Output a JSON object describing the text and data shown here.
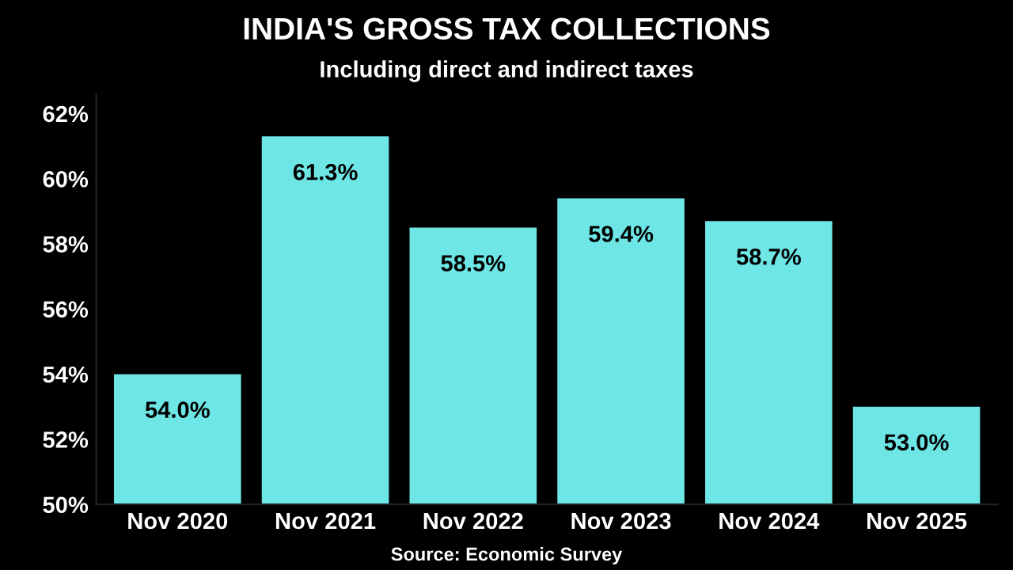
{
  "chart_data": {
    "type": "bar",
    "title": "INDIA'S GROSS TAX COLLECTIONS",
    "subtitle": "Including direct and indirect taxes",
    "categories": [
      "Nov 2020",
      "Nov 2021",
      "Nov 2022",
      "Nov 2023",
      "Nov 2024",
      "Nov 2025"
    ],
    "values": [
      54.0,
      61.3,
      58.5,
      59.4,
      58.7,
      53.0
    ],
    "value_labels": [
      "54.0%",
      "61.3%",
      "58.5%",
      "59.4%",
      "58.7%",
      "53.0%"
    ],
    "color": "#6ee6e6",
    "ylim": [
      50,
      62.6
    ],
    "yticks": [
      {
        "value": 50,
        "label": "50%"
      },
      {
        "value": 52,
        "label": "52%"
      },
      {
        "value": 54,
        "label": "54%"
      },
      {
        "value": 56,
        "label": "56%"
      },
      {
        "value": 58,
        "label": "58%"
      },
      {
        "value": 60,
        "label": "60%"
      },
      {
        "value": 62,
        "label": "62%"
      }
    ],
    "grid": false,
    "legend": false,
    "annotations": [
      "Source: Economic Survey"
    ]
  }
}
